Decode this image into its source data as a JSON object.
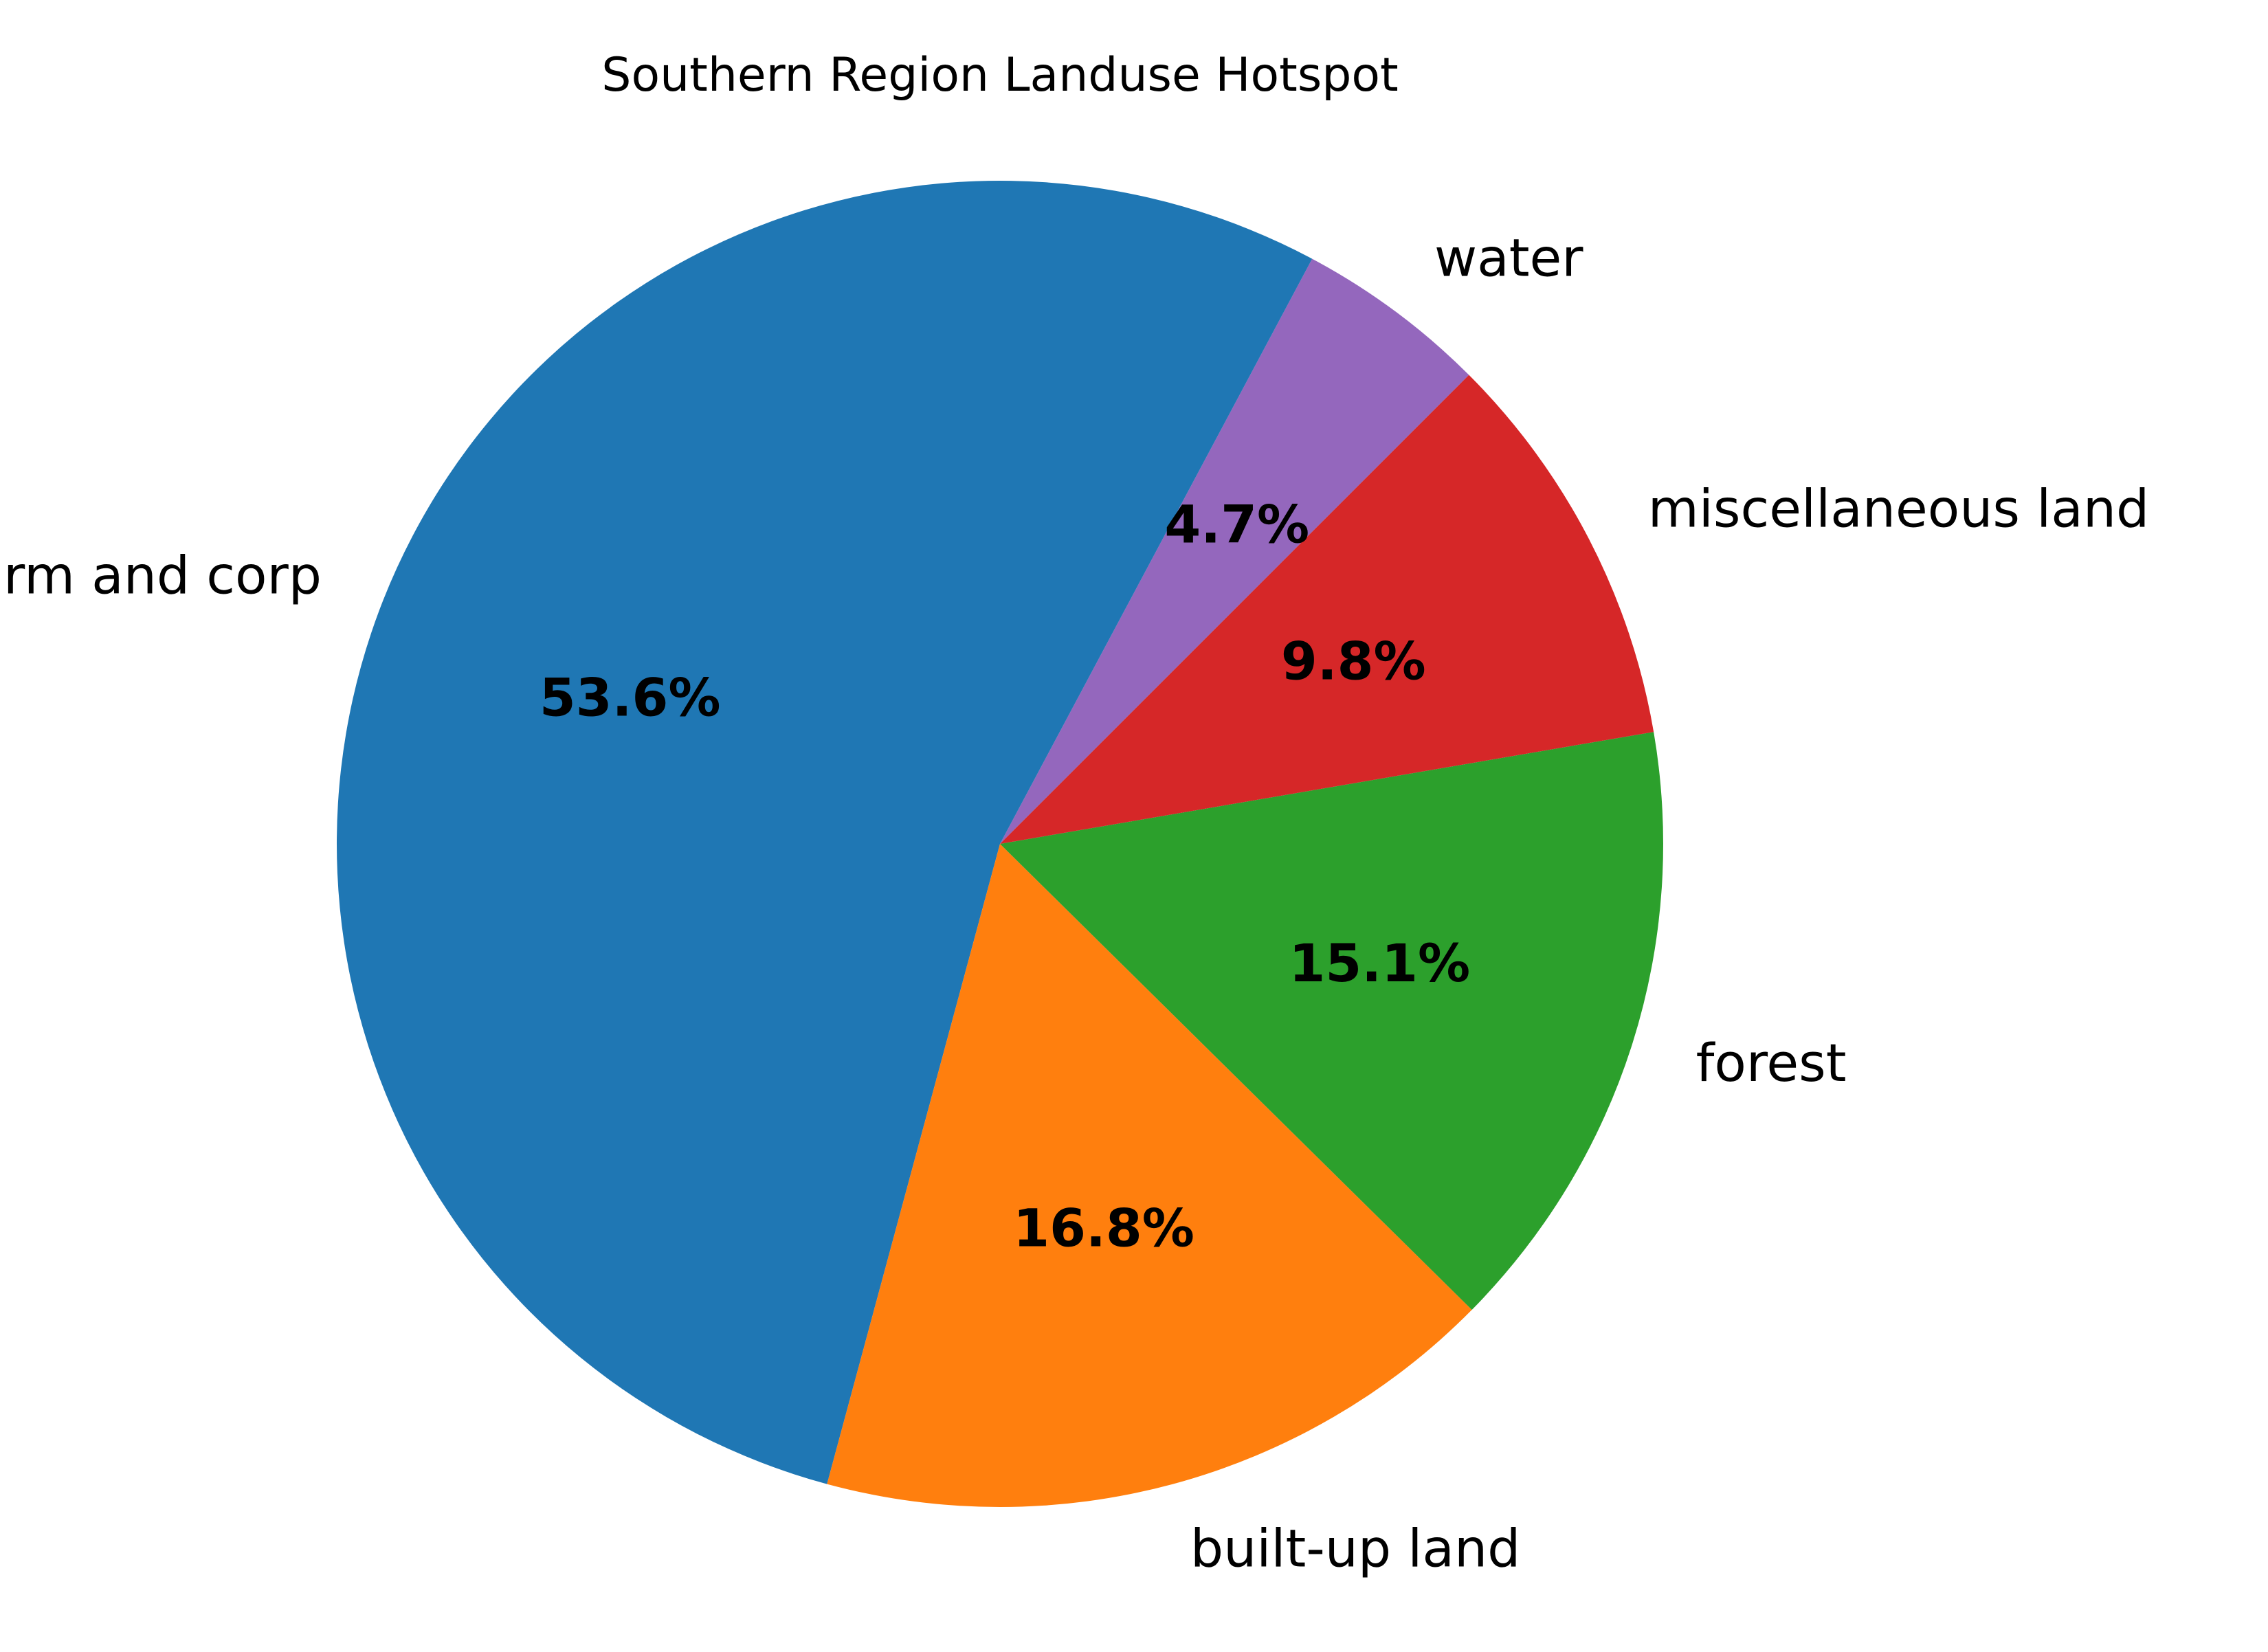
{
  "chart_data": {
    "type": "pie",
    "title": "Southern Region Landuse Hotspot",
    "start_angle_deg": 45,
    "direction": "counterclockwise",
    "legend": "none",
    "slices": [
      {
        "label": "water",
        "value": 4.7,
        "pct_label": "4.7%",
        "color": "#9467bd"
      },
      {
        "label": "farm and corp",
        "value": 53.6,
        "pct_label": "53.6%",
        "color": "#1f77b4"
      },
      {
        "label": "built-up land",
        "value": 16.8,
        "pct_label": "16.8%",
        "color": "#ff7f0e"
      },
      {
        "label": "forest",
        "value": 15.1,
        "pct_label": "15.1%",
        "color": "#2ca02c"
      },
      {
        "label": "miscellaneous land",
        "value": 9.8,
        "pct_label": "9.8%",
        "color": "#d62728"
      }
    ]
  }
}
